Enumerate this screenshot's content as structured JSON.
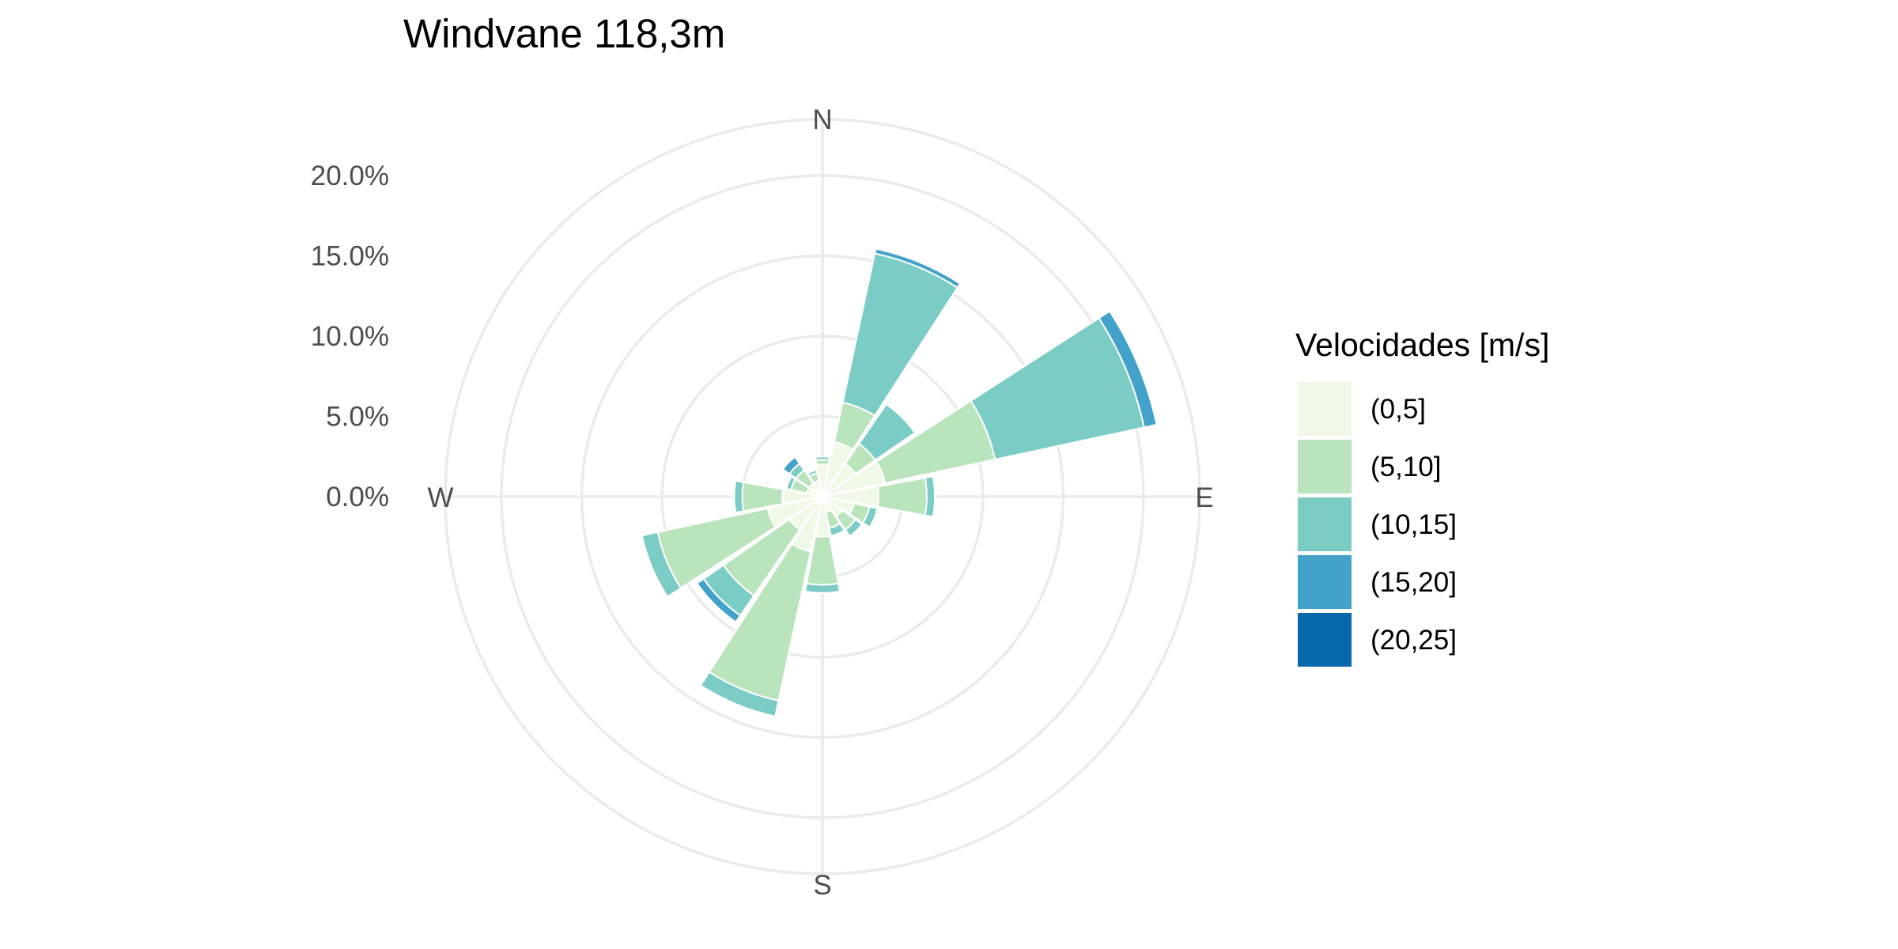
{
  "chart_data": {
    "type": "windrose",
    "title": "Windvane 118,3m",
    "radial_axis": {
      "min": 0,
      "max": 23.5,
      "ticks": [
        0,
        5,
        10,
        15,
        20
      ],
      "tick_labels": [
        "0.0%",
        "5.0%",
        "10.0%",
        "15.0%",
        "20.0%"
      ]
    },
    "directions": [
      "N",
      "NNE",
      "NE",
      "ENE",
      "E",
      "ESE",
      "SE",
      "SSE",
      "S",
      "SSW",
      "SW",
      "WSW",
      "W",
      "WNW",
      "NW",
      "NNW"
    ],
    "direction_angles": [
      0,
      22.5,
      45,
      67.5,
      90,
      112.5,
      135,
      157.5,
      180,
      202.5,
      225,
      247.5,
      270,
      292.5,
      315,
      337.5
    ],
    "compass_labels": [
      "N",
      "E",
      "S",
      "W"
    ],
    "legend": {
      "title": "Velocidades [m/s]",
      "position": "right"
    },
    "series": [
      {
        "name": "(0,5]",
        "color": "#f0f9e8",
        "values": [
          2.0,
          3.5,
          2.5,
          4.0,
          3.5,
          2.0,
          1.5,
          1.0,
          2.5,
          3.5,
          2.5,
          3.5,
          2.5,
          1.0,
          1.0,
          1.0
        ]
      },
      {
        "name": "(5,10]",
        "color": "#bae4bc",
        "values": [
          0.3,
          2.5,
          1.5,
          7.0,
          3.0,
          1.0,
          1.0,
          1.0,
          3.0,
          9.5,
          5.0,
          7.0,
          2.5,
          1.0,
          1.0,
          0.5
        ]
      },
      {
        "name": "(10,15]",
        "color": "#7bccc4",
        "values": [
          0.2,
          9.5,
          3.0,
          9.5,
          0.5,
          0.5,
          0.5,
          0.5,
          0.5,
          1.0,
          1.5,
          1.0,
          0.5,
          0.3,
          0.5,
          0.2
        ]
      },
      {
        "name": "(15,20]",
        "color": "#43a2ca",
        "values": [
          0.0,
          0.3,
          0.0,
          0.8,
          0.0,
          0.0,
          0.0,
          0.0,
          0.0,
          0.0,
          0.5,
          0.0,
          0.0,
          0.0,
          0.5,
          0.0
        ]
      },
      {
        "name": "(20,25]",
        "color": "#0868ac",
        "values": [
          0.0,
          0.0,
          0.0,
          0.0,
          0.0,
          0.0,
          0.0,
          0.0,
          0.0,
          0.0,
          0.0,
          0.0,
          0.0,
          0.0,
          0.0,
          0.0
        ]
      }
    ],
    "grid": true
  }
}
